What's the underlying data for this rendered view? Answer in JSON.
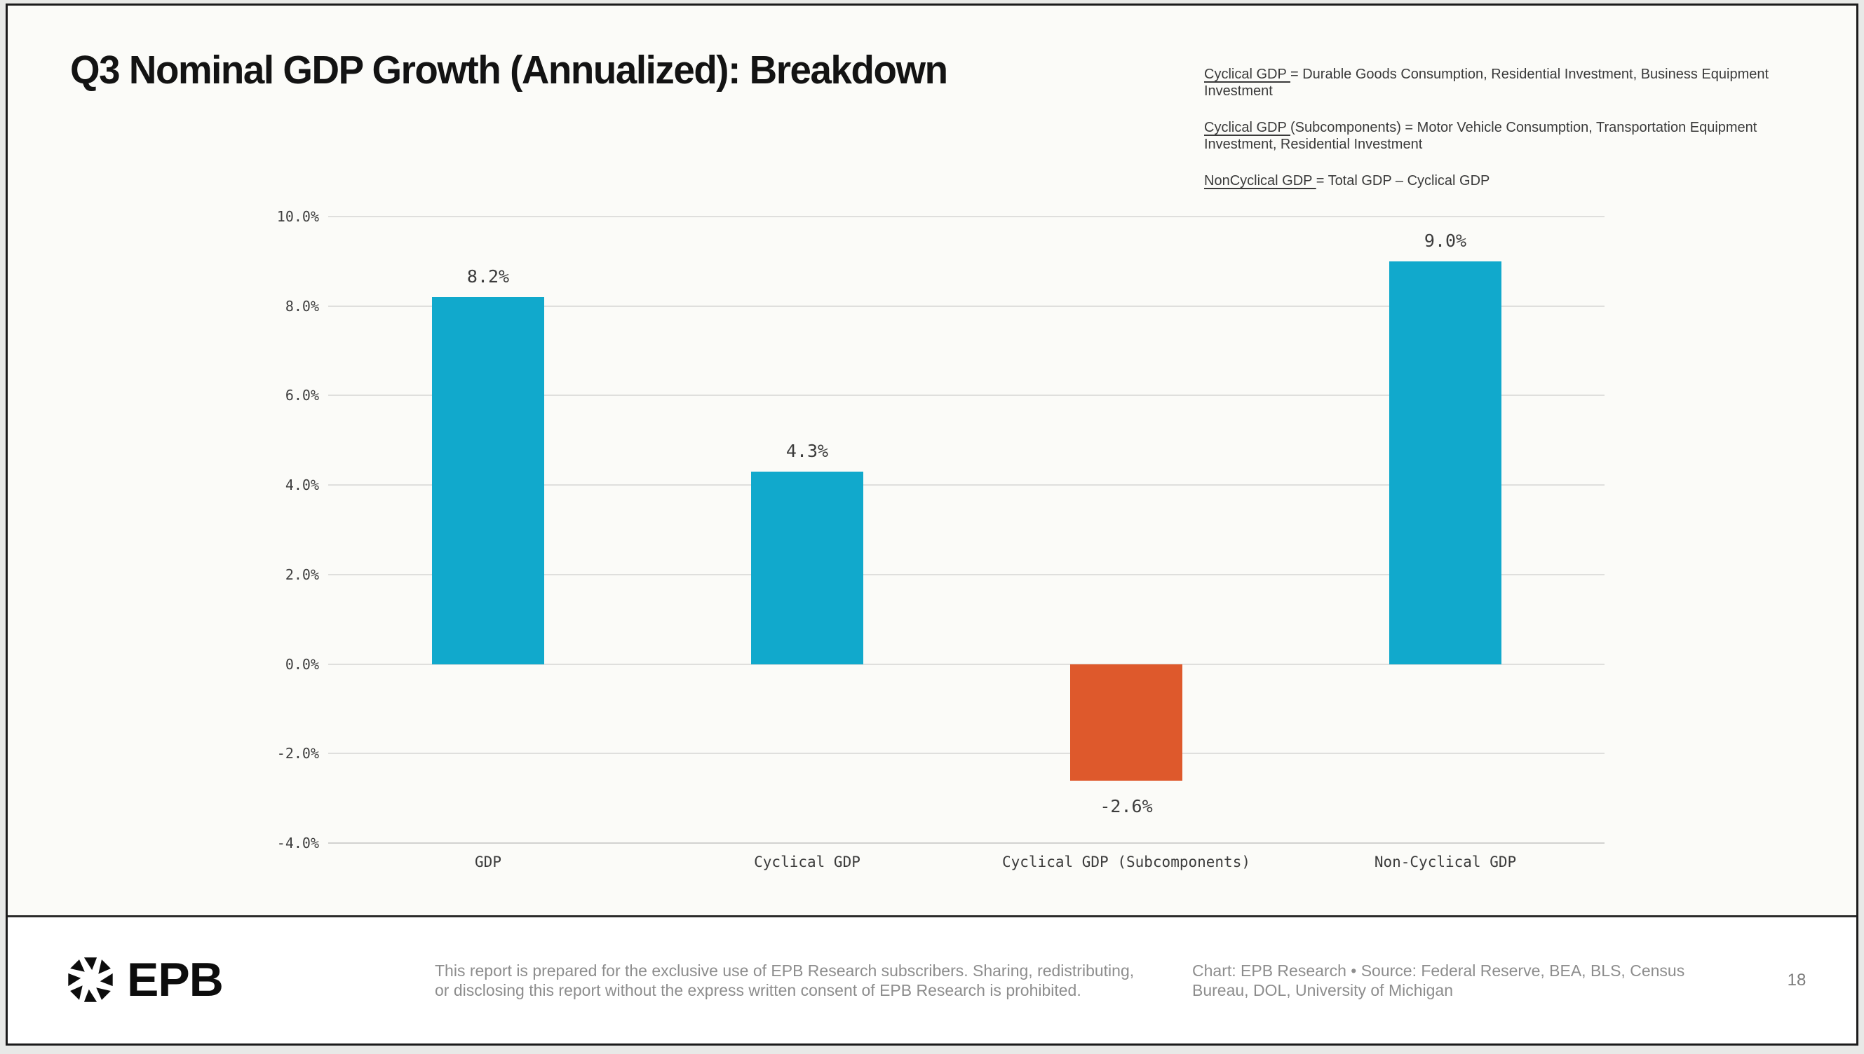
{
  "slide": {
    "title": "Q3 Nominal GDP Growth (Annualized): Breakdown",
    "page_number": "18"
  },
  "definitions": [
    {
      "term": "Cyclical GDP ",
      "rest": "= Durable Goods Consumption, Residential Investment, Business Equipment Investment"
    },
    {
      "term": "Cyclical GDP ",
      "rest": "(Subcomponents) = Motor Vehicle Consumption, Transportation Equipment Investment, Residential Investment"
    },
    {
      "term": "NonCyclical GDP ",
      "rest": "= Total GDP – Cyclical GDP"
    }
  ],
  "chart_data": {
    "type": "bar",
    "title": "Q3 Nominal GDP Growth (Annualized): Breakdown",
    "categories": [
      "GDP",
      "Cyclical GDP",
      "Cyclical GDP (Subcomponents)",
      "Non-Cyclical GDP"
    ],
    "values": [
      8.2,
      4.3,
      -2.6,
      9.0
    ],
    "value_labels": [
      "8.2%",
      "4.3%",
      "-2.6%",
      "9.0%"
    ],
    "bar_colors": [
      "#11a9cc",
      "#11a9cc",
      "#de592c",
      "#11a9cc"
    ],
    "ylim": [
      -4,
      10
    ],
    "ytick_step": 2,
    "yticks": [
      "10.0%",
      "8.0%",
      "6.0%",
      "4.0%",
      "2.0%",
      "0.0%",
      "-2.0%",
      "-4.0%"
    ],
    "grid": true,
    "legend_position": "none",
    "xlabel": "",
    "ylabel": ""
  },
  "footer": {
    "brand": "EPB",
    "disclaimer_line1": "This report is prepared for the exclusive use of EPB Research subscribers. Sharing, redistributing,",
    "disclaimer_line2": "or disclosing this report without the express written consent of EPB Research is prohibited.",
    "credit_line1": "Chart: EPB Research  •  Source: Federal Reserve, BEA, BLS, Census",
    "credit_line2": "Bureau, DOL, University of Michigan"
  }
}
